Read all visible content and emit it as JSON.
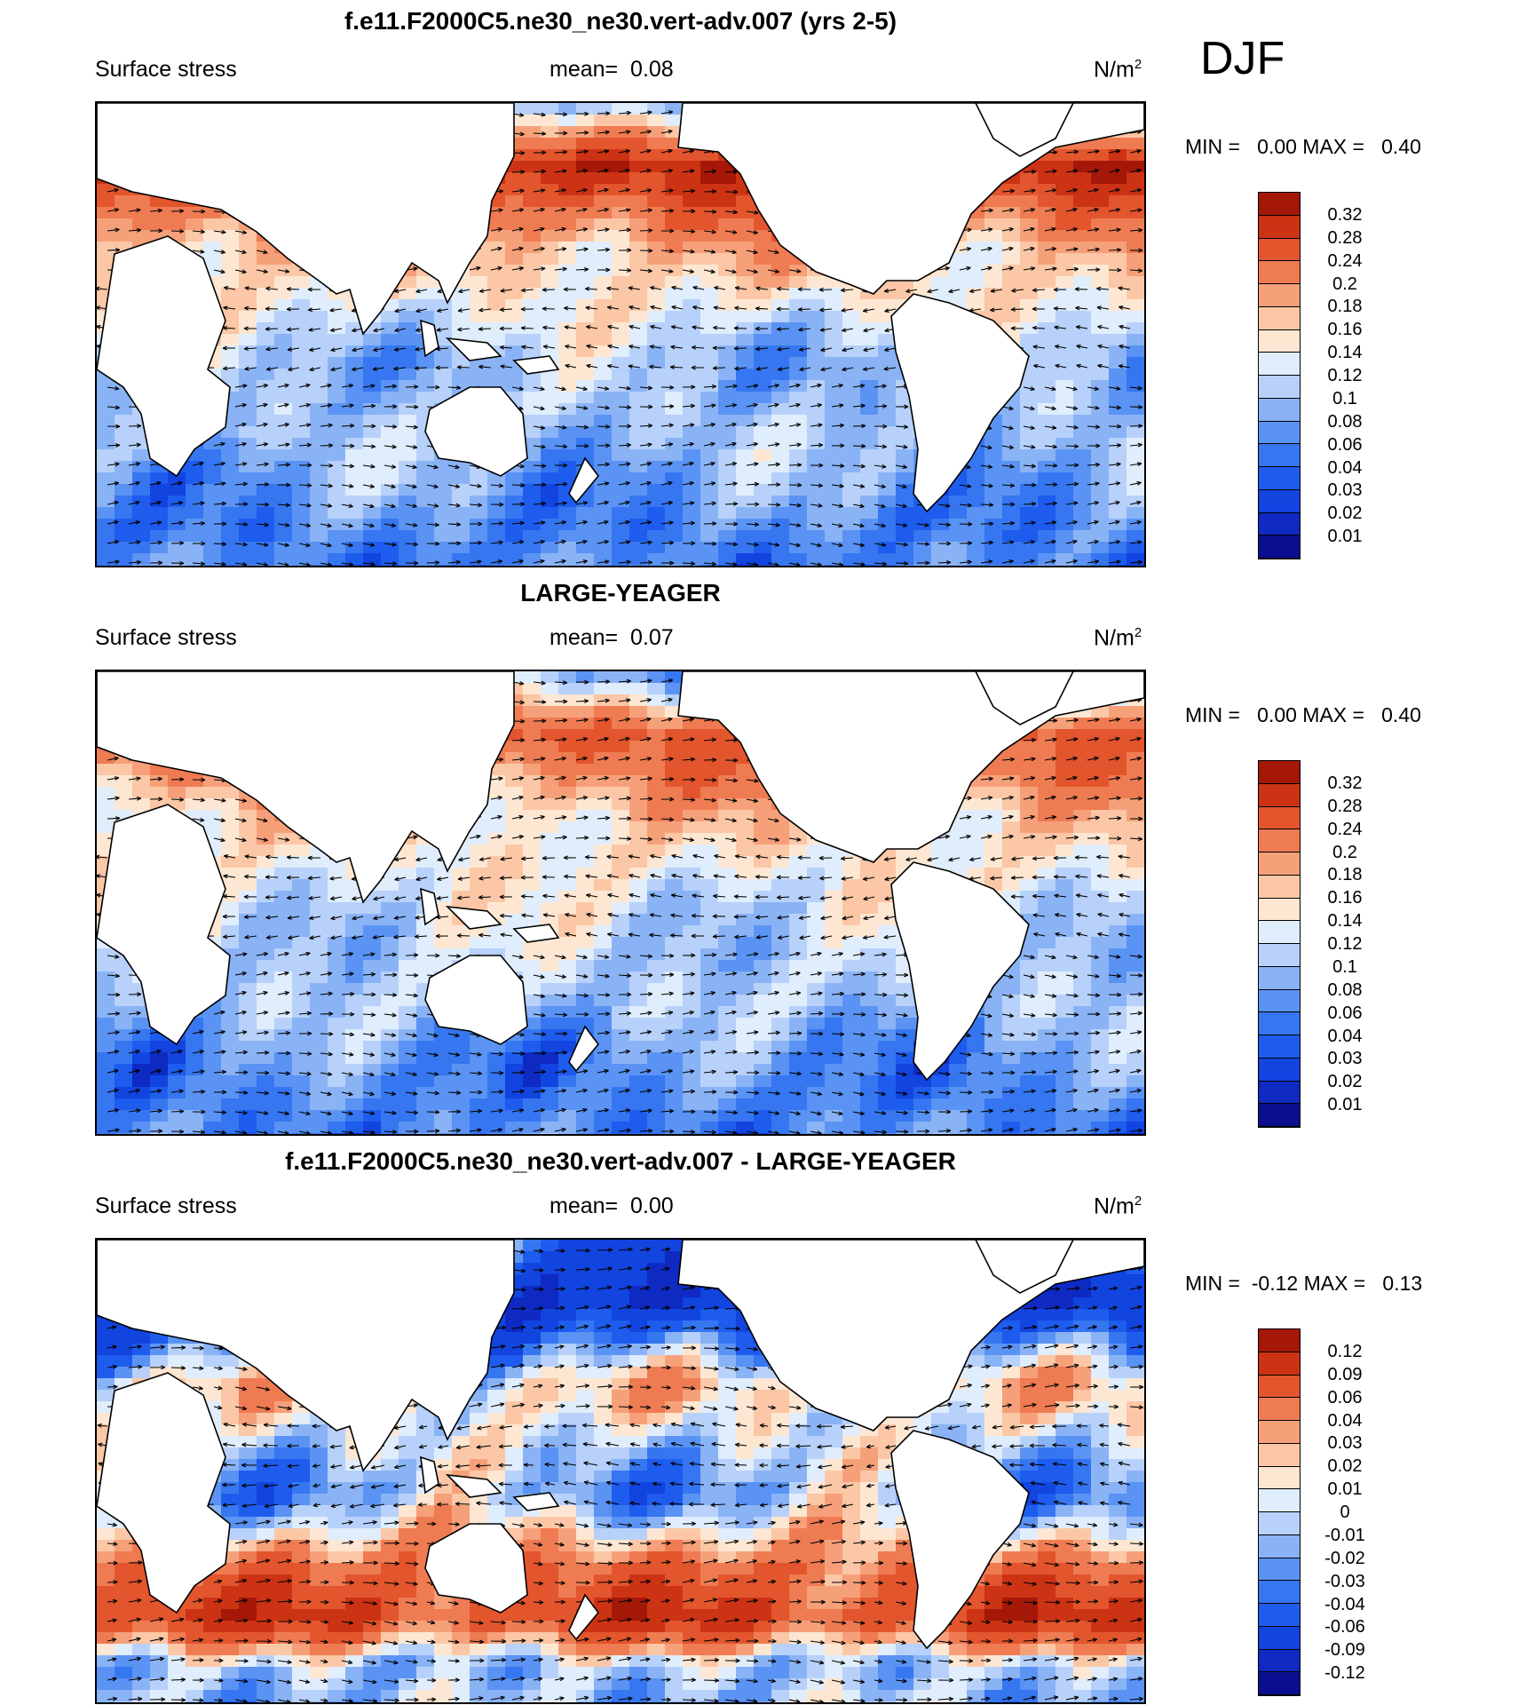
{
  "season": "DJF",
  "units": "N/m",
  "units_exp": "2",
  "variable": "Surface stress",
  "mean_label": "mean=",
  "colors": {
    "abs_scale": [
      "#0b0e8e",
      "#0e2ac2",
      "#1244df",
      "#1e5cee",
      "#3676f0",
      "#5a93f3",
      "#8ab3f6",
      "#b7d1fa",
      "#e0edfc",
      "#fde7d2",
      "#fbc7a6",
      "#f6a07a",
      "#ef7b52",
      "#e2552d",
      "#cc3314",
      "#a51808",
      "#7b0404"
    ],
    "land": "#ffffff",
    "coast": "#000000"
  },
  "panels": [
    {
      "title": "f.e11.F2000C5.ne30_ne30.vert-adv.007 (yrs 2-5)",
      "mean_value": "0.08",
      "minmax": "MIN =   0.00 MAX =   0.40",
      "colorbar_labels": [
        "0.32",
        "0.28",
        "0.24",
        "0.2",
        "0.18",
        "0.16",
        "0.14",
        "0.12",
        "0.1",
        "0.08",
        "0.06",
        "0.04",
        "0.03",
        "0.02",
        "0.01"
      ],
      "bands": [
        [
          0.0,
          0.06
        ],
        [
          0.14,
          0.32
        ],
        [
          0.32,
          0.18
        ],
        [
          0.55,
          0.1
        ],
        [
          0.72,
          0.1
        ],
        [
          0.82,
          0.08
        ],
        [
          0.92,
          0.06
        ]
      ]
    },
    {
      "title": "LARGE-YEAGER",
      "mean_value": "0.07",
      "minmax": "MIN =   0.00 MAX =   0.40",
      "colorbar_labels": [
        "0.32",
        "0.28",
        "0.24",
        "0.2",
        "0.18",
        "0.16",
        "0.14",
        "0.12",
        "0.1",
        "0.08",
        "0.06",
        "0.04",
        "0.03",
        "0.02",
        "0.01"
      ],
      "bands": [
        [
          0.0,
          0.06
        ],
        [
          0.14,
          0.26
        ],
        [
          0.32,
          0.16
        ],
        [
          0.55,
          0.12
        ],
        [
          0.72,
          0.1
        ],
        [
          0.82,
          0.07
        ],
        [
          0.92,
          0.06
        ]
      ]
    },
    {
      "title": "f.e11.F2000C5.ne30_ne30.vert-adv.007 - LARGE-YEAGER",
      "mean_value": "0.00",
      "minmax": "MIN =  -0.12 MAX =   0.13",
      "colorbar_labels": [
        "0.12",
        "0.09",
        "0.06",
        "0.04",
        "0.03",
        "0.02",
        "0.01",
        "0",
        "-0.01",
        "-0.02",
        "-0.03",
        "-0.04",
        "-0.06",
        "-0.09",
        "-0.12"
      ],
      "bands": [
        [
          0.0,
          -0.05
        ],
        [
          0.14,
          -0.09
        ],
        [
          0.32,
          0.02
        ],
        [
          0.55,
          -0.02
        ],
        [
          0.72,
          0.06
        ],
        [
          0.82,
          0.09
        ],
        [
          0.92,
          -0.01
        ]
      ]
    }
  ]
}
